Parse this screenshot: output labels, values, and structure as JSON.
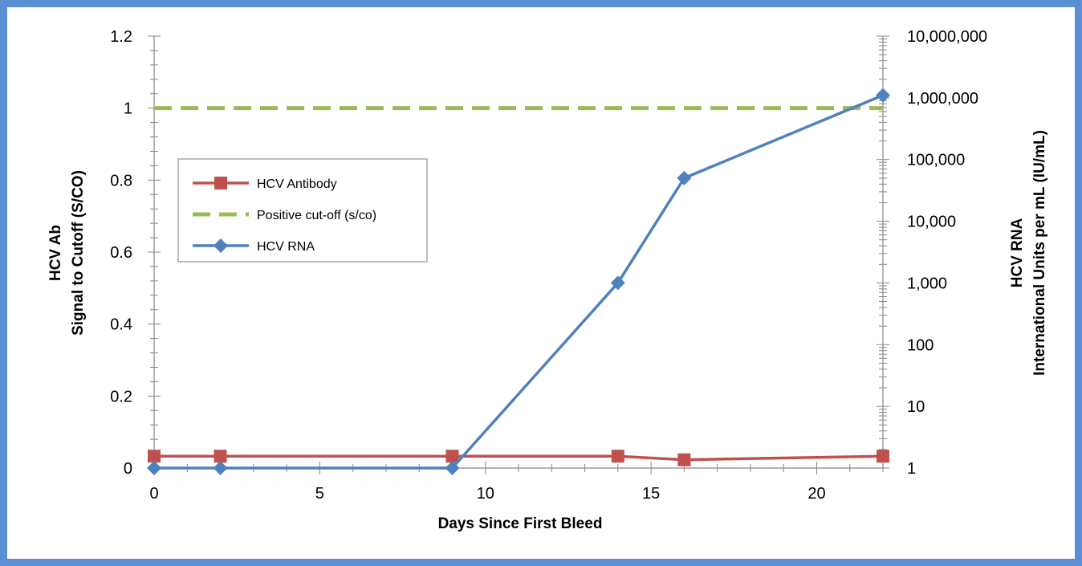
{
  "chart_data": {
    "type": "line",
    "xlabel": "Days Since First Bleed",
    "ylabel_left": [
      "HCV Ab",
      "Signal to Cutoff (S/CO)"
    ],
    "ylabel_right": [
      "HCV RNA",
      "International Units per mL (IU/mL)"
    ],
    "xlim": [
      0,
      22
    ],
    "x_ticks": [
      0,
      5,
      10,
      15,
      20
    ],
    "x_tick_labels": [
      "0",
      "5",
      "10",
      "15",
      "20"
    ],
    "ylim_left": [
      0,
      1.2
    ],
    "y_left_ticks": [
      0,
      0.2,
      0.4,
      0.6,
      0.8,
      1,
      1.2
    ],
    "y_left_tick_labels": [
      "0",
      "0.2",
      "0.4",
      "0.6",
      "0.8",
      "1",
      "1.2"
    ],
    "y_right_scale": "log",
    "ylim_right": [
      1,
      10000000
    ],
    "y_right_ticks": [
      1,
      10,
      100,
      1000,
      10000,
      100000,
      1000000,
      10000000
    ],
    "y_right_tick_labels": [
      "1",
      "10",
      "100",
      "1,000",
      "10,000",
      "100,000",
      "1,000,000",
      "10,000,000"
    ],
    "grid": false,
    "legend_position": "left-middle",
    "series": [
      {
        "name": "HCV Antibody",
        "axis": "left",
        "color": "#c0504d",
        "marker": "square",
        "style": "solid",
        "x": [
          0,
          2,
          9,
          14,
          16,
          22
        ],
        "values": [
          0.033,
          0.033,
          0.033,
          0.033,
          0.023,
          0.033
        ]
      },
      {
        "name": "Positive cut-off (s/co)",
        "axis": "left",
        "color": "#9bbb59",
        "marker": "none",
        "style": "dashed",
        "x": [
          0,
          22
        ],
        "values": [
          1,
          1
        ]
      },
      {
        "name": "HCV RNA",
        "axis": "right",
        "color": "#4f81bd",
        "marker": "diamond",
        "style": "solid",
        "x": [
          0,
          2,
          9,
          14,
          16,
          22
        ],
        "values": [
          1,
          1,
          1,
          1000,
          50000,
          1100000
        ]
      }
    ]
  }
}
